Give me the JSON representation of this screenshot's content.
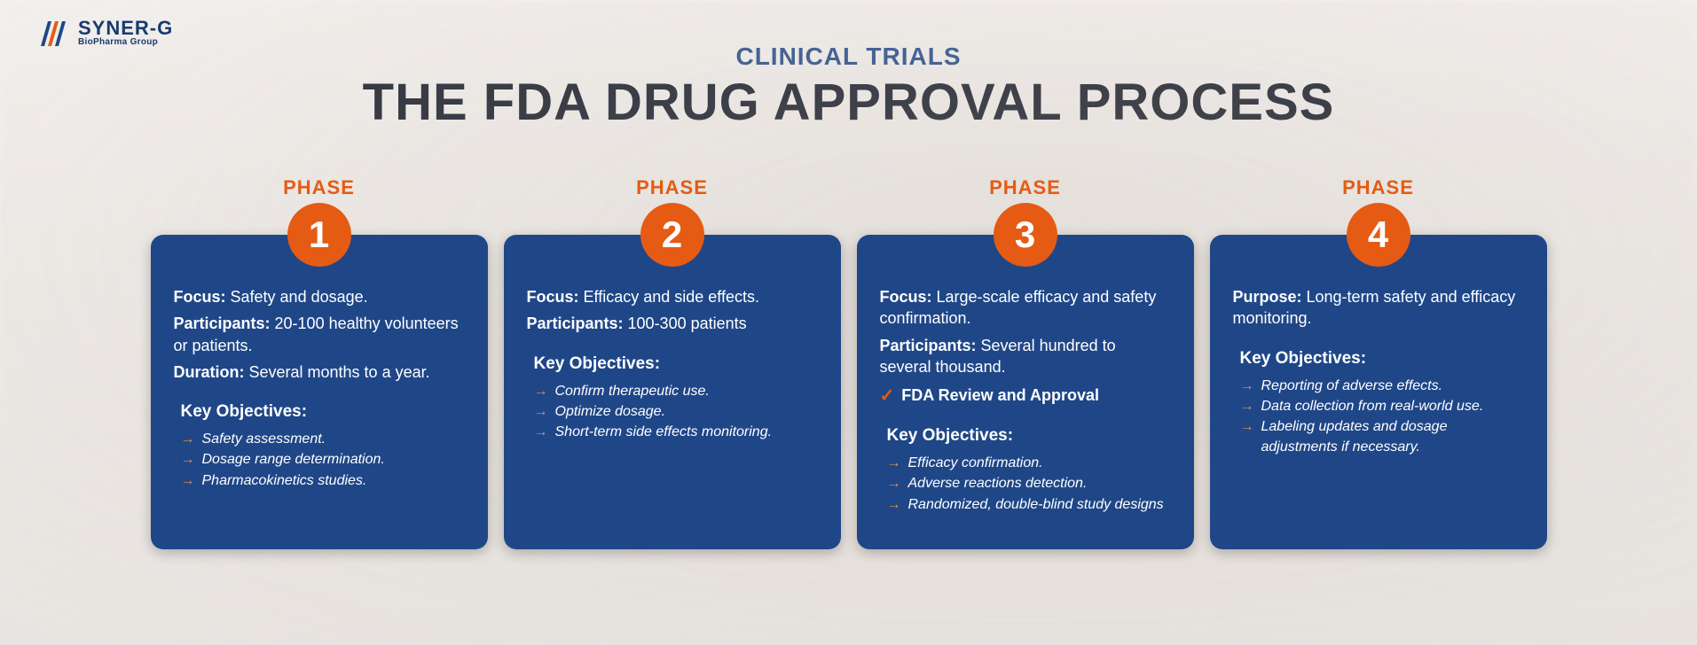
{
  "logo": {
    "main": "SYNER-G",
    "sub": "BioPharma Group"
  },
  "colors": {
    "accent": "#e55b13",
    "card": "#1f4788",
    "title": "#121826",
    "subtitle": "#1f4788",
    "phase_label": "#e55b13",
    "arrow": "#e88a4a",
    "check": "#e55b13"
  },
  "header": {
    "subtitle": "CLINICAL TRIALS",
    "title": "THE FDA DRUG APPROVAL PROCESS"
  },
  "phase_label": "PHASE",
  "objectives_title": "Key Objectives:",
  "phases": [
    {
      "number": "1",
      "fields": [
        {
          "label": "Focus:",
          "value": "Safety and dosage."
        },
        {
          "label": "Participants:",
          "value": "20-100 healthy volunteers or patients."
        },
        {
          "label": "Duration:",
          "value": "Several months to a year."
        }
      ],
      "objectives": [
        "Safety assessment.",
        "Dosage range determination.",
        "Pharmacokinetics studies."
      ]
    },
    {
      "number": "2",
      "fields": [
        {
          "label": "Focus:",
          "value": "Efficacy and side effects."
        },
        {
          "label": "Participants:",
          "value": "100-300 patients"
        }
      ],
      "objectives": [
        "Confirm therapeutic use.",
        "Optimize dosage.",
        "Short-term side effects monitoring."
      ]
    },
    {
      "number": "3",
      "fields": [
        {
          "label": "Focus:",
          "value": "Large-scale efficacy and safety confirmation."
        },
        {
          "label": "Participants:",
          "value": "Several hundred to several thousand."
        }
      ],
      "review": "FDA Review and Approval",
      "objectives": [
        "Efficacy confirmation.",
        "Adverse reactions detection.",
        "Randomized, double-blind study designs"
      ]
    },
    {
      "number": "4",
      "fields": [
        {
          "label": "Purpose:",
          "value": "Long-term safety and efficacy monitoring."
        }
      ],
      "objectives": [
        "Reporting of adverse effects.",
        "Data collection from real-world use.",
        "Labeling updates and dosage adjustments if necessary."
      ]
    }
  ]
}
